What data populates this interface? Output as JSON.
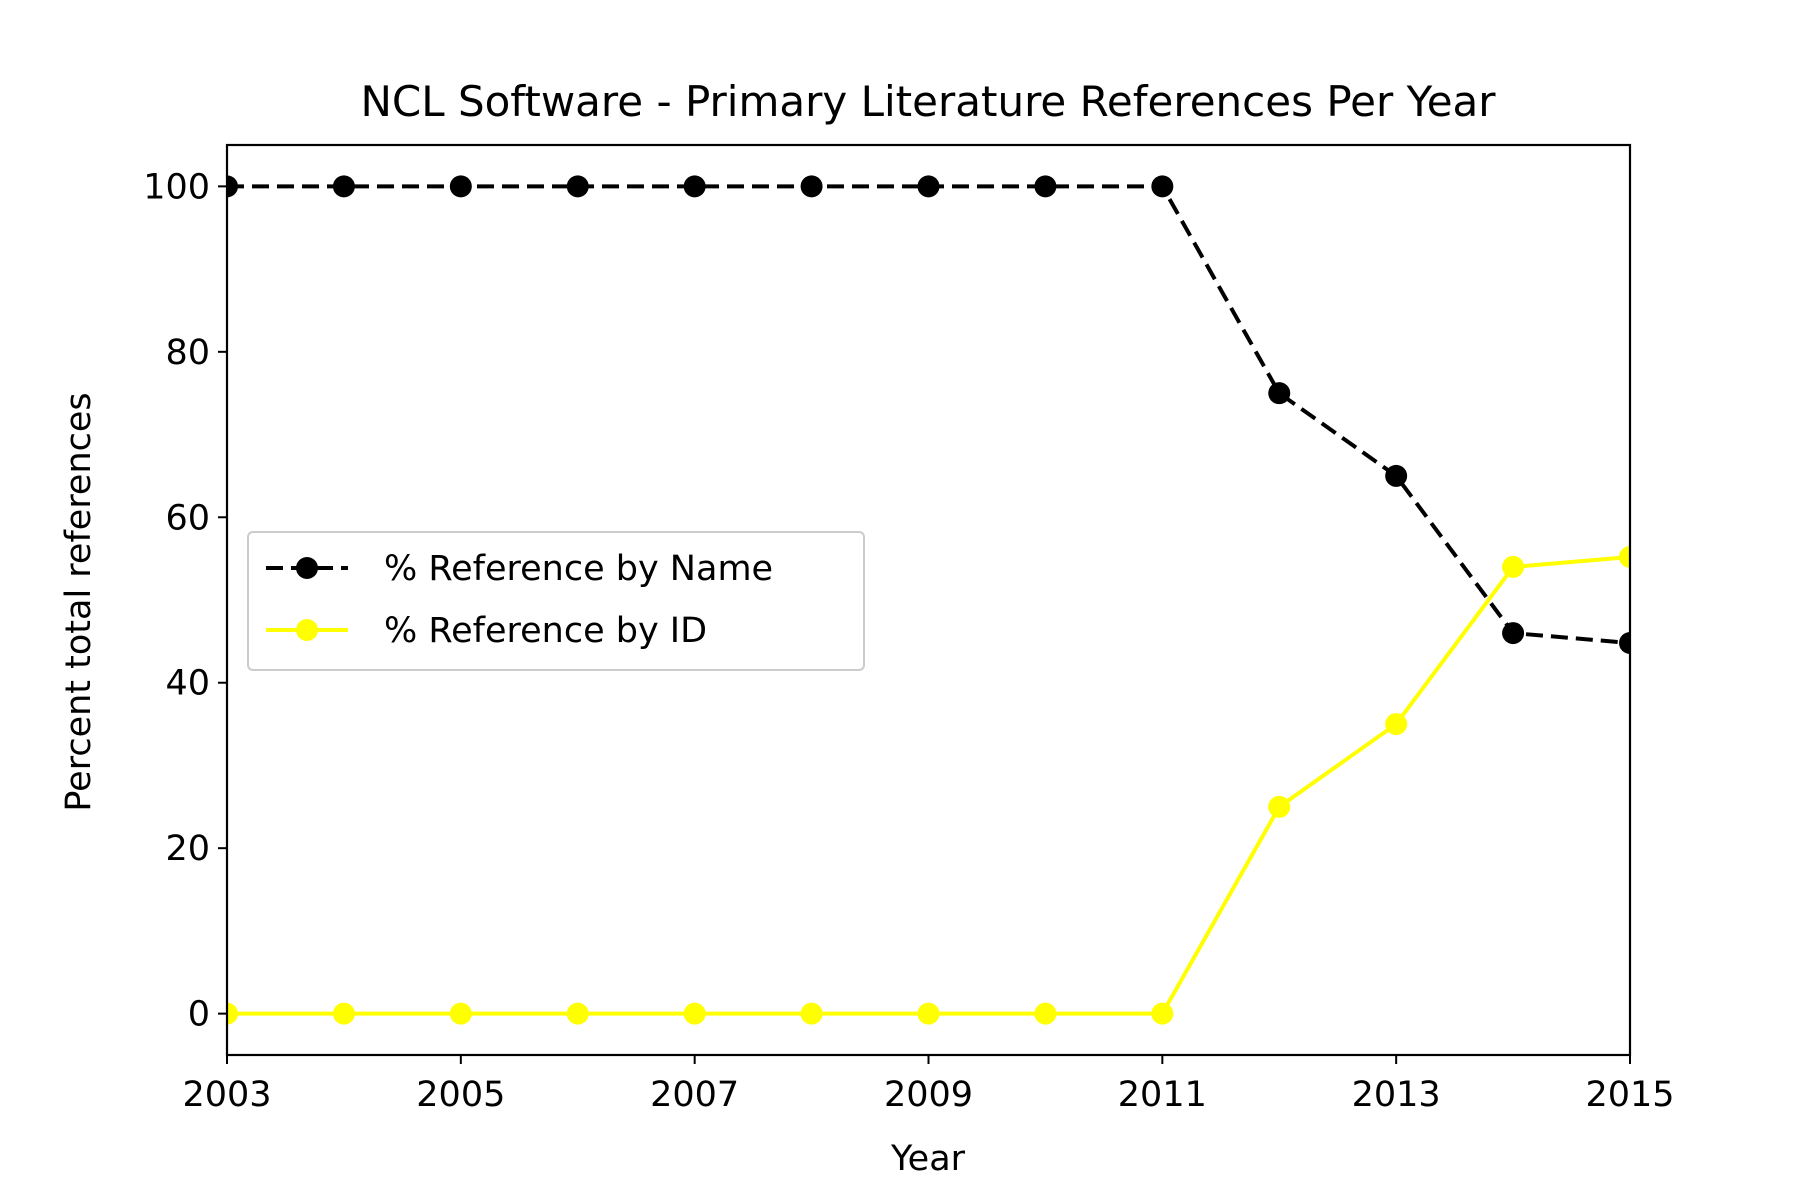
{
  "chart_data": {
    "type": "line",
    "title": "NCL Software - Primary Literature References Per Year",
    "xlabel": "Year",
    "ylabel": "Percent total references",
    "x": [
      2003,
      2004,
      2005,
      2006,
      2007,
      2008,
      2009,
      2010,
      2011,
      2012,
      2013,
      2014,
      2015
    ],
    "xlim": [
      2003,
      2015
    ],
    "ylim": [
      -5,
      105
    ],
    "xticks": [
      2003,
      2005,
      2007,
      2009,
      2011,
      2013,
      2015
    ],
    "yticks": [
      0,
      20,
      40,
      60,
      80,
      100
    ],
    "grid": false,
    "legend_position": "center-left",
    "series": [
      {
        "name": "% Reference by Name",
        "color": "#000000",
        "line_style": "dashed",
        "marker": "circle",
        "values": [
          100,
          100,
          100,
          100,
          100,
          100,
          100,
          100,
          100,
          75,
          65,
          46,
          44.8
        ]
      },
      {
        "name": "% Reference by ID",
        "color": "#ffff00",
        "line_style": "solid",
        "marker": "circle",
        "values": [
          0,
          0,
          0,
          0,
          0,
          0,
          0,
          0,
          0,
          25,
          35,
          54,
          55.2
        ]
      }
    ]
  }
}
